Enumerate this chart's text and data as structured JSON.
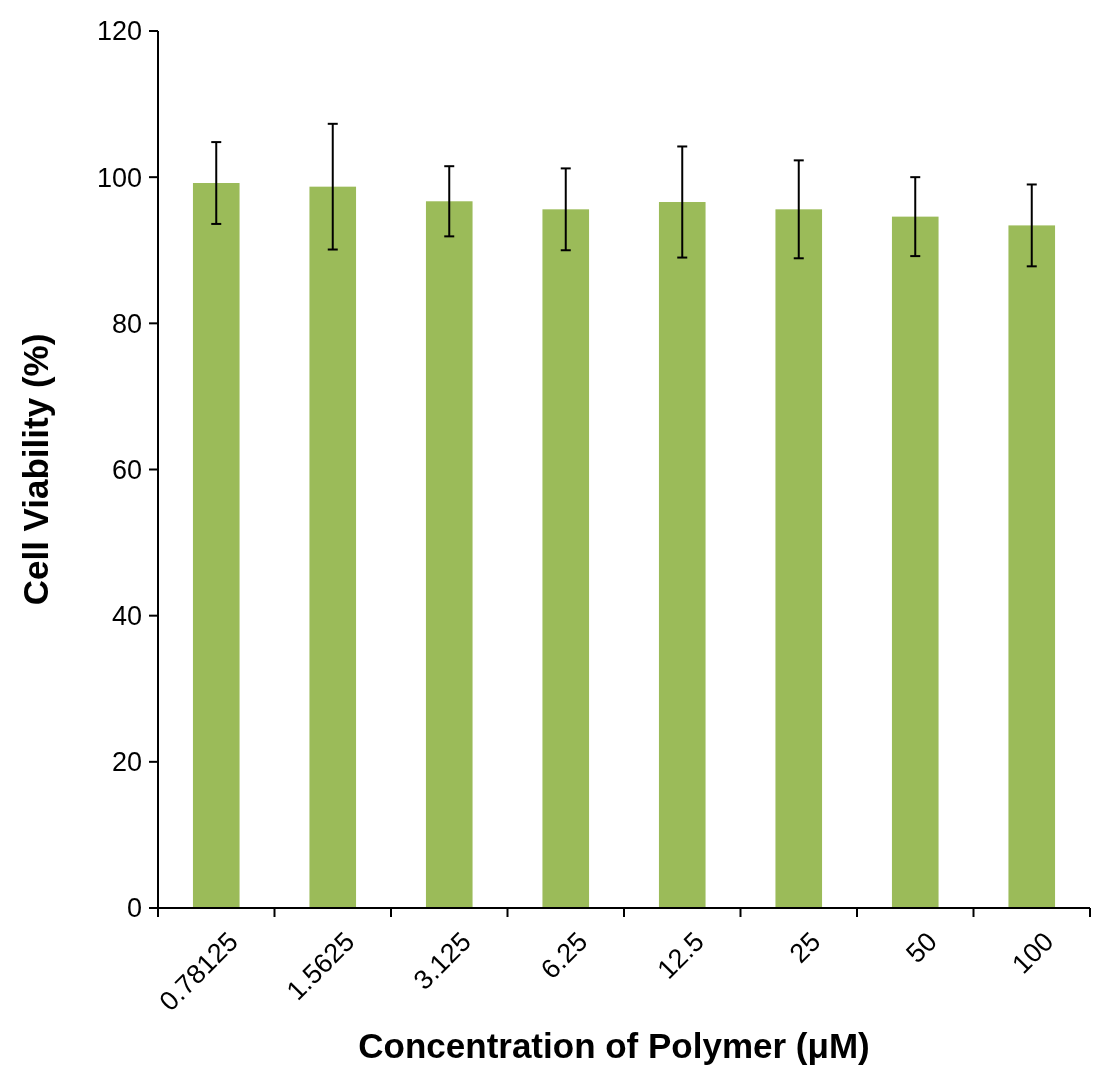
{
  "chart_data": {
    "type": "bar",
    "xlabel": "Concentration of Polymer (μM)",
    "ylabel": "Cell Viability (%)",
    "categories": [
      "0.78125",
      "1.5625",
      "3.125",
      "6.25",
      "12.5",
      "25",
      "50",
      "100"
    ],
    "values": [
      99.2,
      98.7,
      96.7,
      95.6,
      96.6,
      95.6,
      94.6,
      93.4
    ],
    "errors": [
      5.6,
      8.6,
      4.8,
      5.6,
      7.6,
      6.7,
      5.4,
      5.6
    ],
    "color": "#9bbb59",
    "ylim": [
      0,
      120
    ],
    "yticks": [
      0,
      20,
      40,
      60,
      80,
      100,
      120
    ],
    "grid": false
  }
}
